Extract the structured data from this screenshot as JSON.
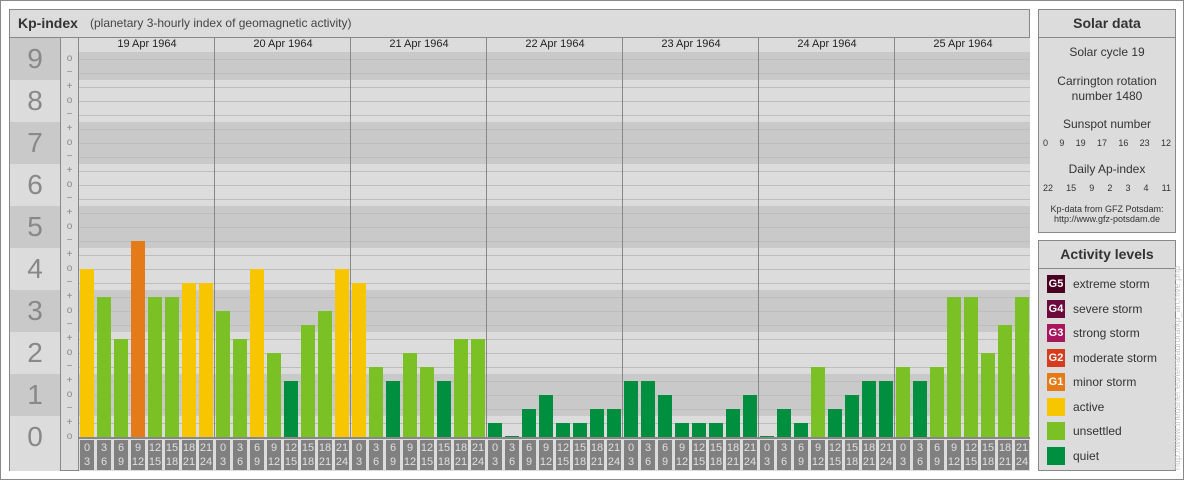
{
  "header": {
    "title": "Kp-index",
    "subtitle": "(planetary 3-hourly index of geomagnetic activity)"
  },
  "chart_data": {
    "type": "bar",
    "title": "Kp-index",
    "subtitle": "(planetary 3-hourly index of geomagnetic activity)",
    "y_tick_labels": [
      "0",
      "1",
      "2",
      "3",
      "4",
      "5",
      "6",
      "7",
      "8",
      "9"
    ],
    "y_subticks": [
      "−",
      "o",
      "+"
    ],
    "ylim": [
      "0o",
      "9o"
    ],
    "grid": true,
    "days": [
      "19 Apr 1964",
      "20 Apr 1964",
      "21 Apr 1964",
      "22 Apr 1964",
      "23 Apr 1964",
      "24 Apr 1964",
      "25 Apr 1964"
    ],
    "hour_intervals": [
      [
        "0",
        "3"
      ],
      [
        "3",
        "6"
      ],
      [
        "6",
        "9"
      ],
      [
        "9",
        "12"
      ],
      [
        "12",
        "15"
      ],
      [
        "15",
        "18"
      ],
      [
        "18",
        "21"
      ],
      [
        "21",
        "24"
      ]
    ],
    "values": [
      [
        "4o",
        "3+",
        "2+",
        "5-",
        "3+",
        "3+",
        "4-",
        "4-"
      ],
      [
        "3o",
        "2+",
        "4o",
        "2o",
        "1+",
        "3-",
        "3o",
        "4o"
      ],
      [
        "4-",
        "2-",
        "1+",
        "2o",
        "2-",
        "1+",
        "2+",
        "2+"
      ],
      [
        "0+",
        "0o",
        "1-",
        "1o",
        "0+",
        "0+",
        "1-",
        "1-"
      ],
      [
        "1+",
        "1+",
        "1o",
        "0+",
        "0+",
        "0+",
        "1-",
        "1o"
      ],
      [
        "0o",
        "1-",
        "0+",
        "2-",
        "1-",
        "1o",
        "1+",
        "1+"
      ],
      [
        "2-",
        "1+",
        "2-",
        "3+",
        "3+",
        "2o",
        "3-",
        "3+"
      ]
    ]
  },
  "solar": {
    "title": "Solar data",
    "cycle": "Solar cycle 19",
    "carrington_1": "Carrington rotation",
    "carrington_2": "number 1480",
    "sunspot_label": "Sunspot number",
    "sunspots": [
      "0",
      "9",
      "19",
      "17",
      "16",
      "23",
      "12"
    ],
    "ap_label": "Daily Ap-index",
    "ap": [
      "22",
      "15",
      "9",
      "2",
      "3",
      "4",
      "11"
    ],
    "source_1": "Kp-data from GFZ Potsdam:",
    "source_2": "http://www.gfz-potsdam.de"
  },
  "activity": {
    "title": "Activity levels",
    "levels": [
      {
        "badge": "G5",
        "label": "extreme storm",
        "color": "#4a0022"
      },
      {
        "badge": "G4",
        "label": "severe storm",
        "color": "#6c0a3c"
      },
      {
        "badge": "G3",
        "label": "strong storm",
        "color": "#a8175e"
      },
      {
        "badge": "G2",
        "label": "moderate storm",
        "color": "#d63b1c"
      },
      {
        "badge": "G1",
        "label": "minor storm",
        "color": "#e57a18"
      },
      {
        "badge": "",
        "label": "active",
        "color": "#f8c600"
      },
      {
        "badge": "",
        "label": "unsettled",
        "color": "#7bc025"
      },
      {
        "badge": "",
        "label": "quiet",
        "color": "#008f3f"
      }
    ]
  },
  "watermark": "http://www.theusner.eu/terra/aurora/kp_archive.php"
}
